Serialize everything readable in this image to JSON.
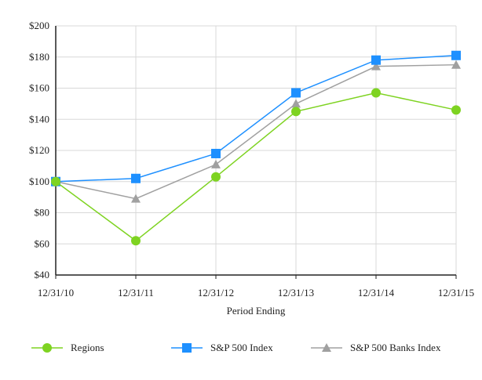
{
  "chart_data": {
    "type": "line",
    "title": "",
    "xlabel": "Period Ending",
    "ylabel": "",
    "categories": [
      "12/31/10",
      "12/31/11",
      "12/31/12",
      "12/31/13",
      "12/31/14",
      "12/31/15"
    ],
    "ylim": [
      40,
      200
    ],
    "yticks": [
      40,
      60,
      80,
      100,
      120,
      140,
      160,
      180,
      200
    ],
    "ytick_labels": [
      "$40",
      "$60",
      "$80",
      "$100",
      "$120",
      "$140",
      "$160",
      "$180",
      "$200"
    ],
    "grid": true,
    "legend_position": "bottom",
    "series": [
      {
        "name": "Regions",
        "values": [
          100,
          62,
          103,
          145,
          157,
          146
        ],
        "color": "#7ed321",
        "marker": "circle"
      },
      {
        "name": "S&P 500 Index",
        "values": [
          100,
          102,
          118,
          157,
          178,
          181
        ],
        "color": "#1e90ff",
        "marker": "square"
      },
      {
        "name": "S&P 500 Banks Index",
        "values": [
          100,
          89,
          111,
          150,
          174,
          175
        ],
        "color": "#a0a0a0",
        "marker": "triangle"
      }
    ]
  }
}
